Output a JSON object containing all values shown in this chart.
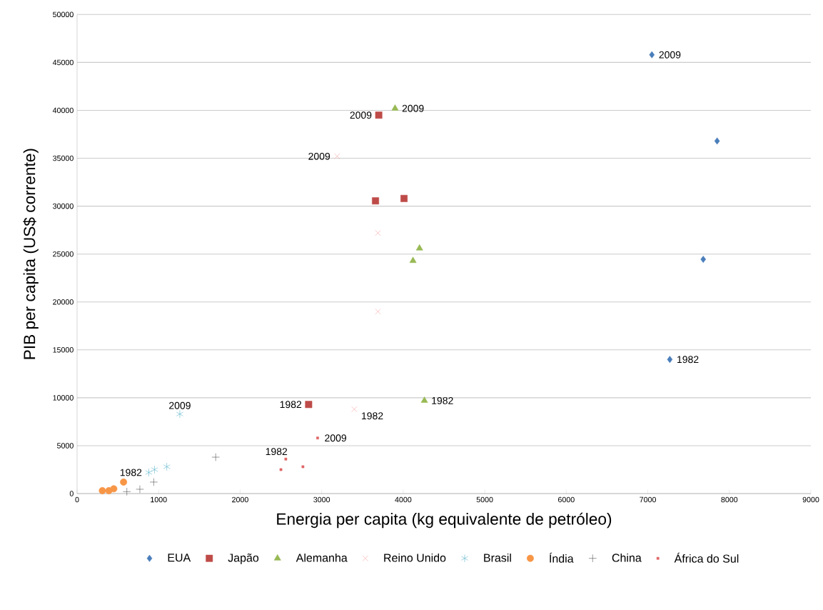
{
  "chart_data": {
    "type": "scatter",
    "xlabel": "Energia per capita (kg equivalente de petróleo)",
    "ylabel": "PIB per capita (US$ corrente)",
    "xlim": [
      0,
      9000
    ],
    "xticks": [
      0,
      1000,
      2000,
      3000,
      4000,
      5000,
      6000,
      7000,
      8000,
      9000
    ],
    "ylim": [
      0,
      50000
    ],
    "yticks": [
      0,
      5000,
      10000,
      15000,
      20000,
      25000,
      30000,
      35000,
      40000,
      45000,
      50000
    ],
    "grid": "y",
    "legend": "bottom",
    "series": [
      {
        "name": "EUA",
        "color": "#4a7ebb",
        "marker": "diamond",
        "x": [
          7270,
          7680,
          7850,
          7050
        ],
        "values": [
          14000,
          24450,
          36800,
          45800
        ]
      },
      {
        "name": "Japão",
        "color": "#be4b48",
        "marker": "square",
        "x": [
          2840,
          3660,
          4010,
          3700
        ],
        "values": [
          9300,
          30550,
          30800,
          39500
        ]
      },
      {
        "name": "Alemanha",
        "color": "#98b954",
        "marker": "triangle",
        "x": [
          4260,
          4120,
          4200,
          3900
        ],
        "values": [
          9700,
          24300,
          25600,
          40200
        ]
      },
      {
        "name": "Reino Unido",
        "color": "#f79696",
        "marker": "cross",
        "x": [
          3400,
          3690,
          3690,
          3190
        ],
        "values": [
          8800,
          19000,
          27200,
          35200
        ]
      },
      {
        "name": "Brasil",
        "color": "#4bacc6",
        "x": [
          880,
          950,
          1100,
          1260
        ],
        "values": [
          2200,
          2500,
          2800,
          8300
        ]
      },
      {
        "name": "Índia",
        "color": "#f79646",
        "marker": "circle",
        "x": [
          310,
          390,
          450,
          570
        ],
        "values": [
          300,
          300,
          500,
          1200
        ]
      },
      {
        "name": "China",
        "color": "#404040",
        "marker": "plus",
        "x": [
          610,
          770,
          940,
          1700
        ],
        "values": [
          200,
          450,
          1200,
          3800
        ]
      },
      {
        "name": "África do Sul",
        "color": "#e06666",
        "x": [
          2560,
          2500,
          2770,
          2950
        ],
        "values": [
          3600,
          2500,
          2800,
          5800
        ]
      }
    ],
    "annotations": [
      {
        "text": "2009",
        "x": 7050,
        "y": 45800
      },
      {
        "text": "1982",
        "x": 7270,
        "y": 14000
      },
      {
        "text": "2009",
        "x": 3700,
        "y": 39500
      },
      {
        "text": "1982",
        "x": 2840,
        "y": 9300
      },
      {
        "text": "2009",
        "x": 3900,
        "y": 40200
      },
      {
        "text": "1982",
        "x": 4260,
        "y": 9700
      },
      {
        "text": "2009",
        "x": 3190,
        "y": 35200
      },
      {
        "text": "1982",
        "x": 3400,
        "y": 8800
      },
      {
        "text": "2009",
        "x": 1260,
        "y": 8300
      },
      {
        "text": "1982",
        "x": 880,
        "y": 2200
      },
      {
        "text": "2009",
        "x": 2950,
        "y": 5800
      },
      {
        "text": "1982",
        "x": 2560,
        "y": 3600
      }
    ]
  }
}
